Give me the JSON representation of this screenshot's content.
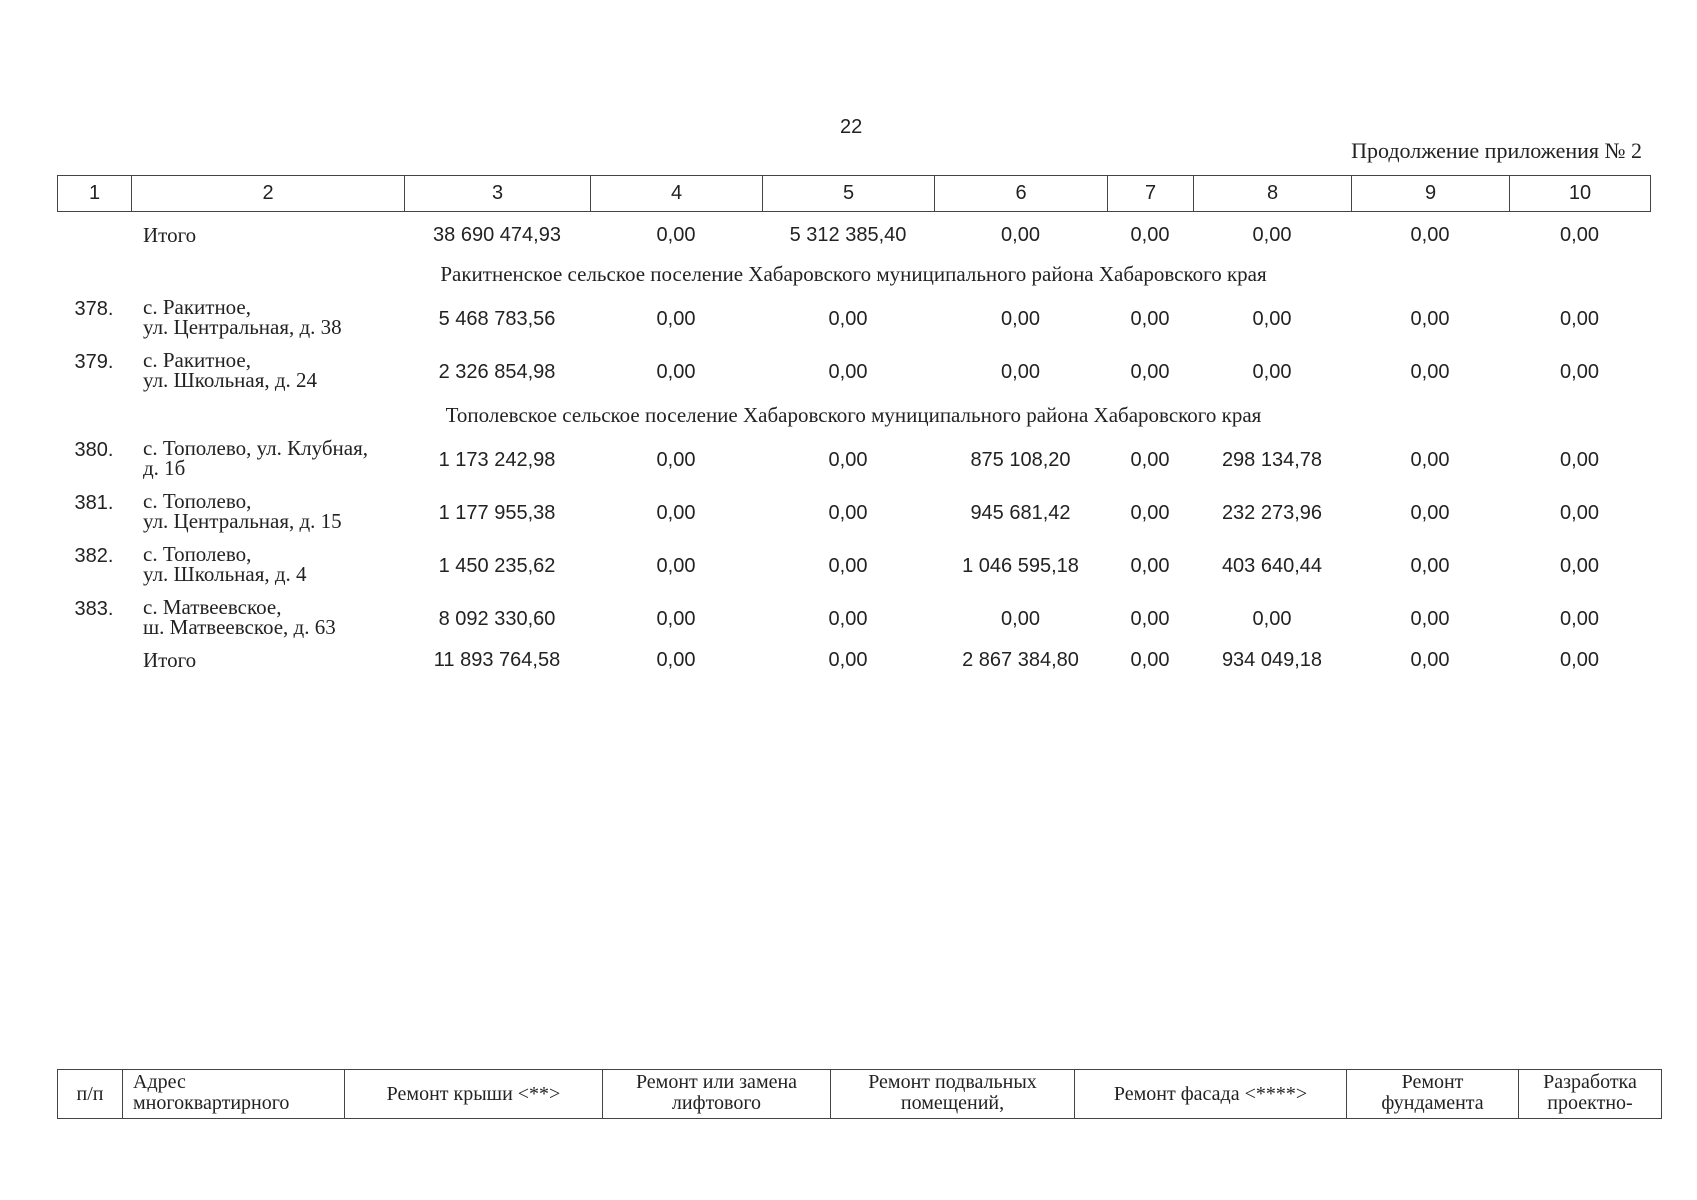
{
  "page_number": "22",
  "subtitle": "Продолжение приложения № 2",
  "header_columns": [
    "1",
    "2",
    "3",
    "4",
    "5",
    "6",
    "7",
    "8",
    "9",
    "10"
  ],
  "rows": [
    {
      "num": "",
      "addr1": "Итого",
      "addr2": "",
      "v3": "38 690 474,93",
      "v4": "0,00",
      "v5": "5 312 385,40",
      "v6": "0,00",
      "v7": "0,00",
      "v8": "0,00",
      "v9": "0,00",
      "v10": "0,00"
    },
    {
      "num": "378.",
      "addr1": "с. Ракитное,",
      "addr2": "ул. Центральная, д. 38",
      "v3": "5 468 783,56",
      "v4": "0,00",
      "v5": "0,00",
      "v6": "0,00",
      "v7": "0,00",
      "v8": "0,00",
      "v9": "0,00",
      "v10": "0,00"
    },
    {
      "num": "379.",
      "addr1": "с. Ракитное,",
      "addr2": "ул. Школьная, д. 24",
      "v3": "2 326 854,98",
      "v4": "0,00",
      "v5": "0,00",
      "v6": "0,00",
      "v7": "0,00",
      "v8": "0,00",
      "v9": "0,00",
      "v10": "0,00"
    },
    {
      "num": "380.",
      "addr1": "с. Тополево, ул. Клубная,",
      "addr2": "д. 1б",
      "v3": "1 173 242,98",
      "v4": "0,00",
      "v5": "0,00",
      "v6": "875 108,20",
      "v7": "0,00",
      "v8": "298 134,78",
      "v9": "0,00",
      "v10": "0,00"
    },
    {
      "num": "381.",
      "addr1": "с. Тополево,",
      "addr2": "ул. Центральная, д. 15",
      "v3": "1 177 955,38",
      "v4": "0,00",
      "v5": "0,00",
      "v6": "945 681,42",
      "v7": "0,00",
      "v8": "232 273,96",
      "v9": "0,00",
      "v10": "0,00"
    },
    {
      "num": "382.",
      "addr1": "с. Тополево,",
      "addr2": "ул. Школьная, д. 4",
      "v3": "1 450 235,62",
      "v4": "0,00",
      "v5": "0,00",
      "v6": "1 046 595,18",
      "v7": "0,00",
      "v8": "403 640,44",
      "v9": "0,00",
      "v10": "0,00"
    },
    {
      "num": "383.",
      "addr1": "с. Матвеевское,",
      "addr2": "ш. Матвеевское, д. 63",
      "v3": "8 092 330,60",
      "v4": "0,00",
      "v5": "0,00",
      "v6": "0,00",
      "v7": "0,00",
      "v8": "0,00",
      "v9": "0,00",
      "v10": "0,00"
    },
    {
      "num": "",
      "addr1": "Итого",
      "addr2": "",
      "v3": "11 893 764,58",
      "v4": "0,00",
      "v5": "0,00",
      "v6": "2 867 384,80",
      "v7": "0,00",
      "v8": "934 049,18",
      "v9": "0,00",
      "v10": "0,00"
    }
  ],
  "sections": [
    "Ракитненское сельское поселение Хабаровского муниципального района Хабаровского края",
    "Тополевское сельское поселение Хабаровского муниципального района Хабаровского края"
  ],
  "footer_header": {
    "col1": "п/п",
    "col2_line1": "Адрес",
    "col2_line2": "многоквартирного",
    "col3": "Ремонт крыши <**>",
    "col4_line1": "Ремонт или замена",
    "col4_line2": "лифтового",
    "col5_line1": "Ремонт подвальных",
    "col5_line2": "помещений,",
    "col6": "Ремонт фасада <****>",
    "col7_line1": "Ремонт",
    "col7_line2": "фундамента",
    "col8_line1": "Разработка",
    "col8_line2": "проектно-"
  }
}
